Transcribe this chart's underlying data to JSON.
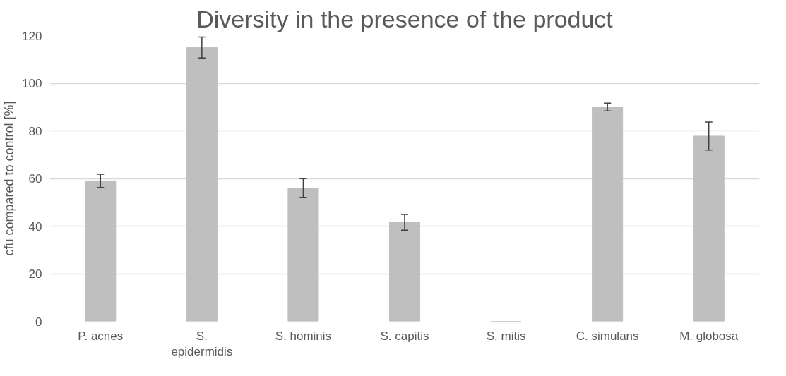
{
  "chart_data": {
    "type": "bar",
    "title": "Diversity in the presence of the product",
    "ylabel": "cfu compared to control [%]",
    "categories": [
      "P. acnes",
      "S. epidermidis",
      "S. hominis",
      "S. capitis",
      "S. mitis",
      "C. simulans",
      "M. globosa"
    ],
    "series": [
      {
        "color": "#bfbfbf",
        "values": [
          59,
          115,
          56,
          41.6,
          0,
          90,
          77.8
        ],
        "errors": [
          2.8,
          4.4,
          3.9,
          3.3,
          null,
          1.6,
          5.9
        ]
      }
    ],
    "ylim": [
      0,
      120
    ],
    "yticks": [
      0,
      20,
      40,
      60,
      80,
      100,
      120
    ],
    "grid": "y"
  }
}
